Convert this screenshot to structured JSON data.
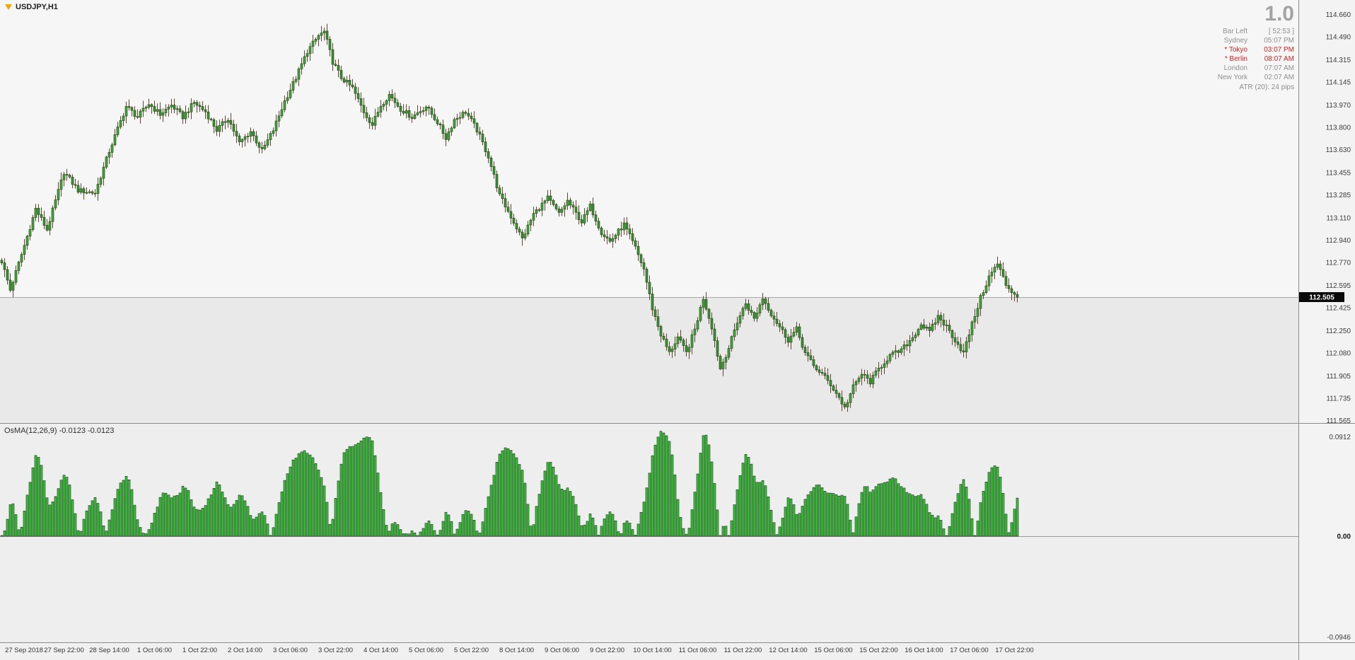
{
  "window": {
    "symbol_label": "USDJPY,H1"
  },
  "info_panel": {
    "zoom_level": "1.0",
    "rows": [
      {
        "label": "Bar Left",
        "value": "[ 52:53 ]",
        "color": "gray"
      },
      {
        "label": "Sydney",
        "value": "05:07 PM",
        "color": "gray"
      },
      {
        "label": "* Tokyo",
        "value": "03:07 PM",
        "color": "red"
      },
      {
        "label": "* Berlin",
        "value": "08:07 AM",
        "color": "red"
      },
      {
        "label": "London",
        "value": "07:07 AM",
        "color": "gray"
      },
      {
        "label": "New York",
        "value": "02:07 AM",
        "color": "gray"
      }
    ],
    "atr_line": "ATR (20): 24 pips"
  },
  "price_axis": {
    "current_price_label": "112.505"
  },
  "indicator": {
    "label": "OsMA(12,26,9) -0.0123 -0.0123",
    "axis_max_label": "0.0912",
    "zero_label": "0.00",
    "axis_min_label": "-0.0946"
  },
  "time_axis": {
    "labels": [
      "27 Sep 2018",
      "27 Sep 22:00",
      "28 Sep 14:00",
      "1 Oct 06:00",
      "1 Oct 22:00",
      "2 Oct 14:00",
      "3 Oct 06:00",
      "3 Oct 22:00",
      "4 Oct 14:00",
      "5 Oct 06:00",
      "5 Oct 22:00",
      "8 Oct 14:00",
      "9 Oct 06:00",
      "9 Oct 22:00",
      "10 Oct 14:00",
      "11 Oct 06:00",
      "11 Oct 22:00",
      "12 Oct 14:00",
      "15 Oct 06:00",
      "15 Oct 22:00",
      "16 Oct 14:00",
      "17 Oct 06:00",
      "17 Oct 22:00"
    ],
    "first_label_bar": 6,
    "label_step_bars": 16
  },
  "chart_data": {
    "type": "candlestick",
    "symbol": "USDJPY",
    "timeframe": "H1",
    "bars_total": 360,
    "price_axis_ticks": [
      114.66,
      114.49,
      114.315,
      114.145,
      113.97,
      113.8,
      113.63,
      113.455,
      113.285,
      113.11,
      112.94,
      112.77,
      112.595,
      112.425,
      112.25,
      112.08,
      111.905,
      111.735,
      111.565
    ],
    "current_price": 112.505,
    "close_waypoints": [
      [
        0,
        112.78
      ],
      [
        3,
        112.56
      ],
      [
        8,
        112.9
      ],
      [
        12,
        113.18
      ],
      [
        16,
        113.02
      ],
      [
        22,
        113.46
      ],
      [
        27,
        113.32
      ],
      [
        33,
        113.3
      ],
      [
        38,
        113.62
      ],
      [
        44,
        113.96
      ],
      [
        48,
        113.88
      ],
      [
        52,
        113.98
      ],
      [
        56,
        113.9
      ],
      [
        60,
        113.97
      ],
      [
        64,
        113.88
      ],
      [
        68,
        113.99
      ],
      [
        72,
        113.92
      ],
      [
        76,
        113.78
      ],
      [
        80,
        113.87
      ],
      [
        84,
        113.68
      ],
      [
        88,
        113.77
      ],
      [
        92,
        113.62
      ],
      [
        96,
        113.78
      ],
      [
        100,
        114.0
      ],
      [
        104,
        114.18
      ],
      [
        108,
        114.38
      ],
      [
        112,
        114.5
      ],
      [
        114,
        114.53
      ],
      [
        117,
        114.3
      ],
      [
        120,
        114.18
      ],
      [
        124,
        114.1
      ],
      [
        128,
        113.92
      ],
      [
        131,
        113.82
      ],
      [
        134,
        113.97
      ],
      [
        137,
        114.05
      ],
      [
        141,
        113.94
      ],
      [
        145,
        113.88
      ],
      [
        150,
        113.96
      ],
      [
        154,
        113.84
      ],
      [
        157,
        113.72
      ],
      [
        160,
        113.86
      ],
      [
        164,
        113.92
      ],
      [
        168,
        113.78
      ],
      [
        172,
        113.58
      ],
      [
        176,
        113.28
      ],
      [
        180,
        113.12
      ],
      [
        184,
        112.95
      ],
      [
        188,
        113.14
      ],
      [
        193,
        113.26
      ],
      [
        197,
        113.14
      ],
      [
        200,
        113.24
      ],
      [
        205,
        113.08
      ],
      [
        208,
        113.2
      ],
      [
        212,
        113.0
      ],
      [
        215,
        112.93
      ],
      [
        220,
        113.06
      ],
      [
        224,
        112.88
      ],
      [
        227,
        112.72
      ],
      [
        230,
        112.42
      ],
      [
        233,
        112.22
      ],
      [
        236,
        112.08
      ],
      [
        239,
        112.2
      ],
      [
        242,
        112.08
      ],
      [
        245,
        112.26
      ],
      [
        248,
        112.5
      ],
      [
        251,
        112.28
      ],
      [
        254,
        111.96
      ],
      [
        257,
        112.12
      ],
      [
        260,
        112.32
      ],
      [
        263,
        112.46
      ],
      [
        266,
        112.34
      ],
      [
        269,
        112.5
      ],
      [
        272,
        112.38
      ],
      [
        275,
        112.28
      ],
      [
        278,
        112.18
      ],
      [
        281,
        112.26
      ],
      [
        284,
        112.08
      ],
      [
        287,
        111.98
      ],
      [
        290,
        111.92
      ],
      [
        293,
        111.84
      ],
      [
        296,
        111.74
      ],
      [
        298,
        111.66
      ],
      [
        301,
        111.82
      ],
      [
        304,
        111.92
      ],
      [
        307,
        111.86
      ],
      [
        310,
        111.96
      ],
      [
        314,
        112.06
      ],
      [
        318,
        112.1
      ],
      [
        322,
        112.2
      ],
      [
        325,
        112.3
      ],
      [
        328,
        112.24
      ],
      [
        331,
        112.36
      ],
      [
        334,
        112.28
      ],
      [
        337,
        112.18
      ],
      [
        340,
        112.08
      ],
      [
        343,
        112.3
      ],
      [
        346,
        112.5
      ],
      [
        349,
        112.66
      ],
      [
        352,
        112.76
      ],
      [
        355,
        112.6
      ],
      [
        359,
        112.505
      ]
    ],
    "indicator": {
      "type": "histogram",
      "name": "OsMA",
      "params": [
        12,
        26,
        9
      ],
      "last_value": -0.0123,
      "axis_max": 0.0912,
      "axis_min": -0.0946
    },
    "colors": {
      "bull_body": "#44a341",
      "bear_body": "#3a9038",
      "candle_outline": "#2d5016",
      "wick": "#5f4632",
      "osma_up": "#33cc33",
      "osma_down": "#ef2e2e",
      "osma_outline": "#222222",
      "bid_line": "#a8a8a8",
      "price_badge_bg": "#0a0a0a",
      "price_badge_text": "#ffffff"
    }
  }
}
